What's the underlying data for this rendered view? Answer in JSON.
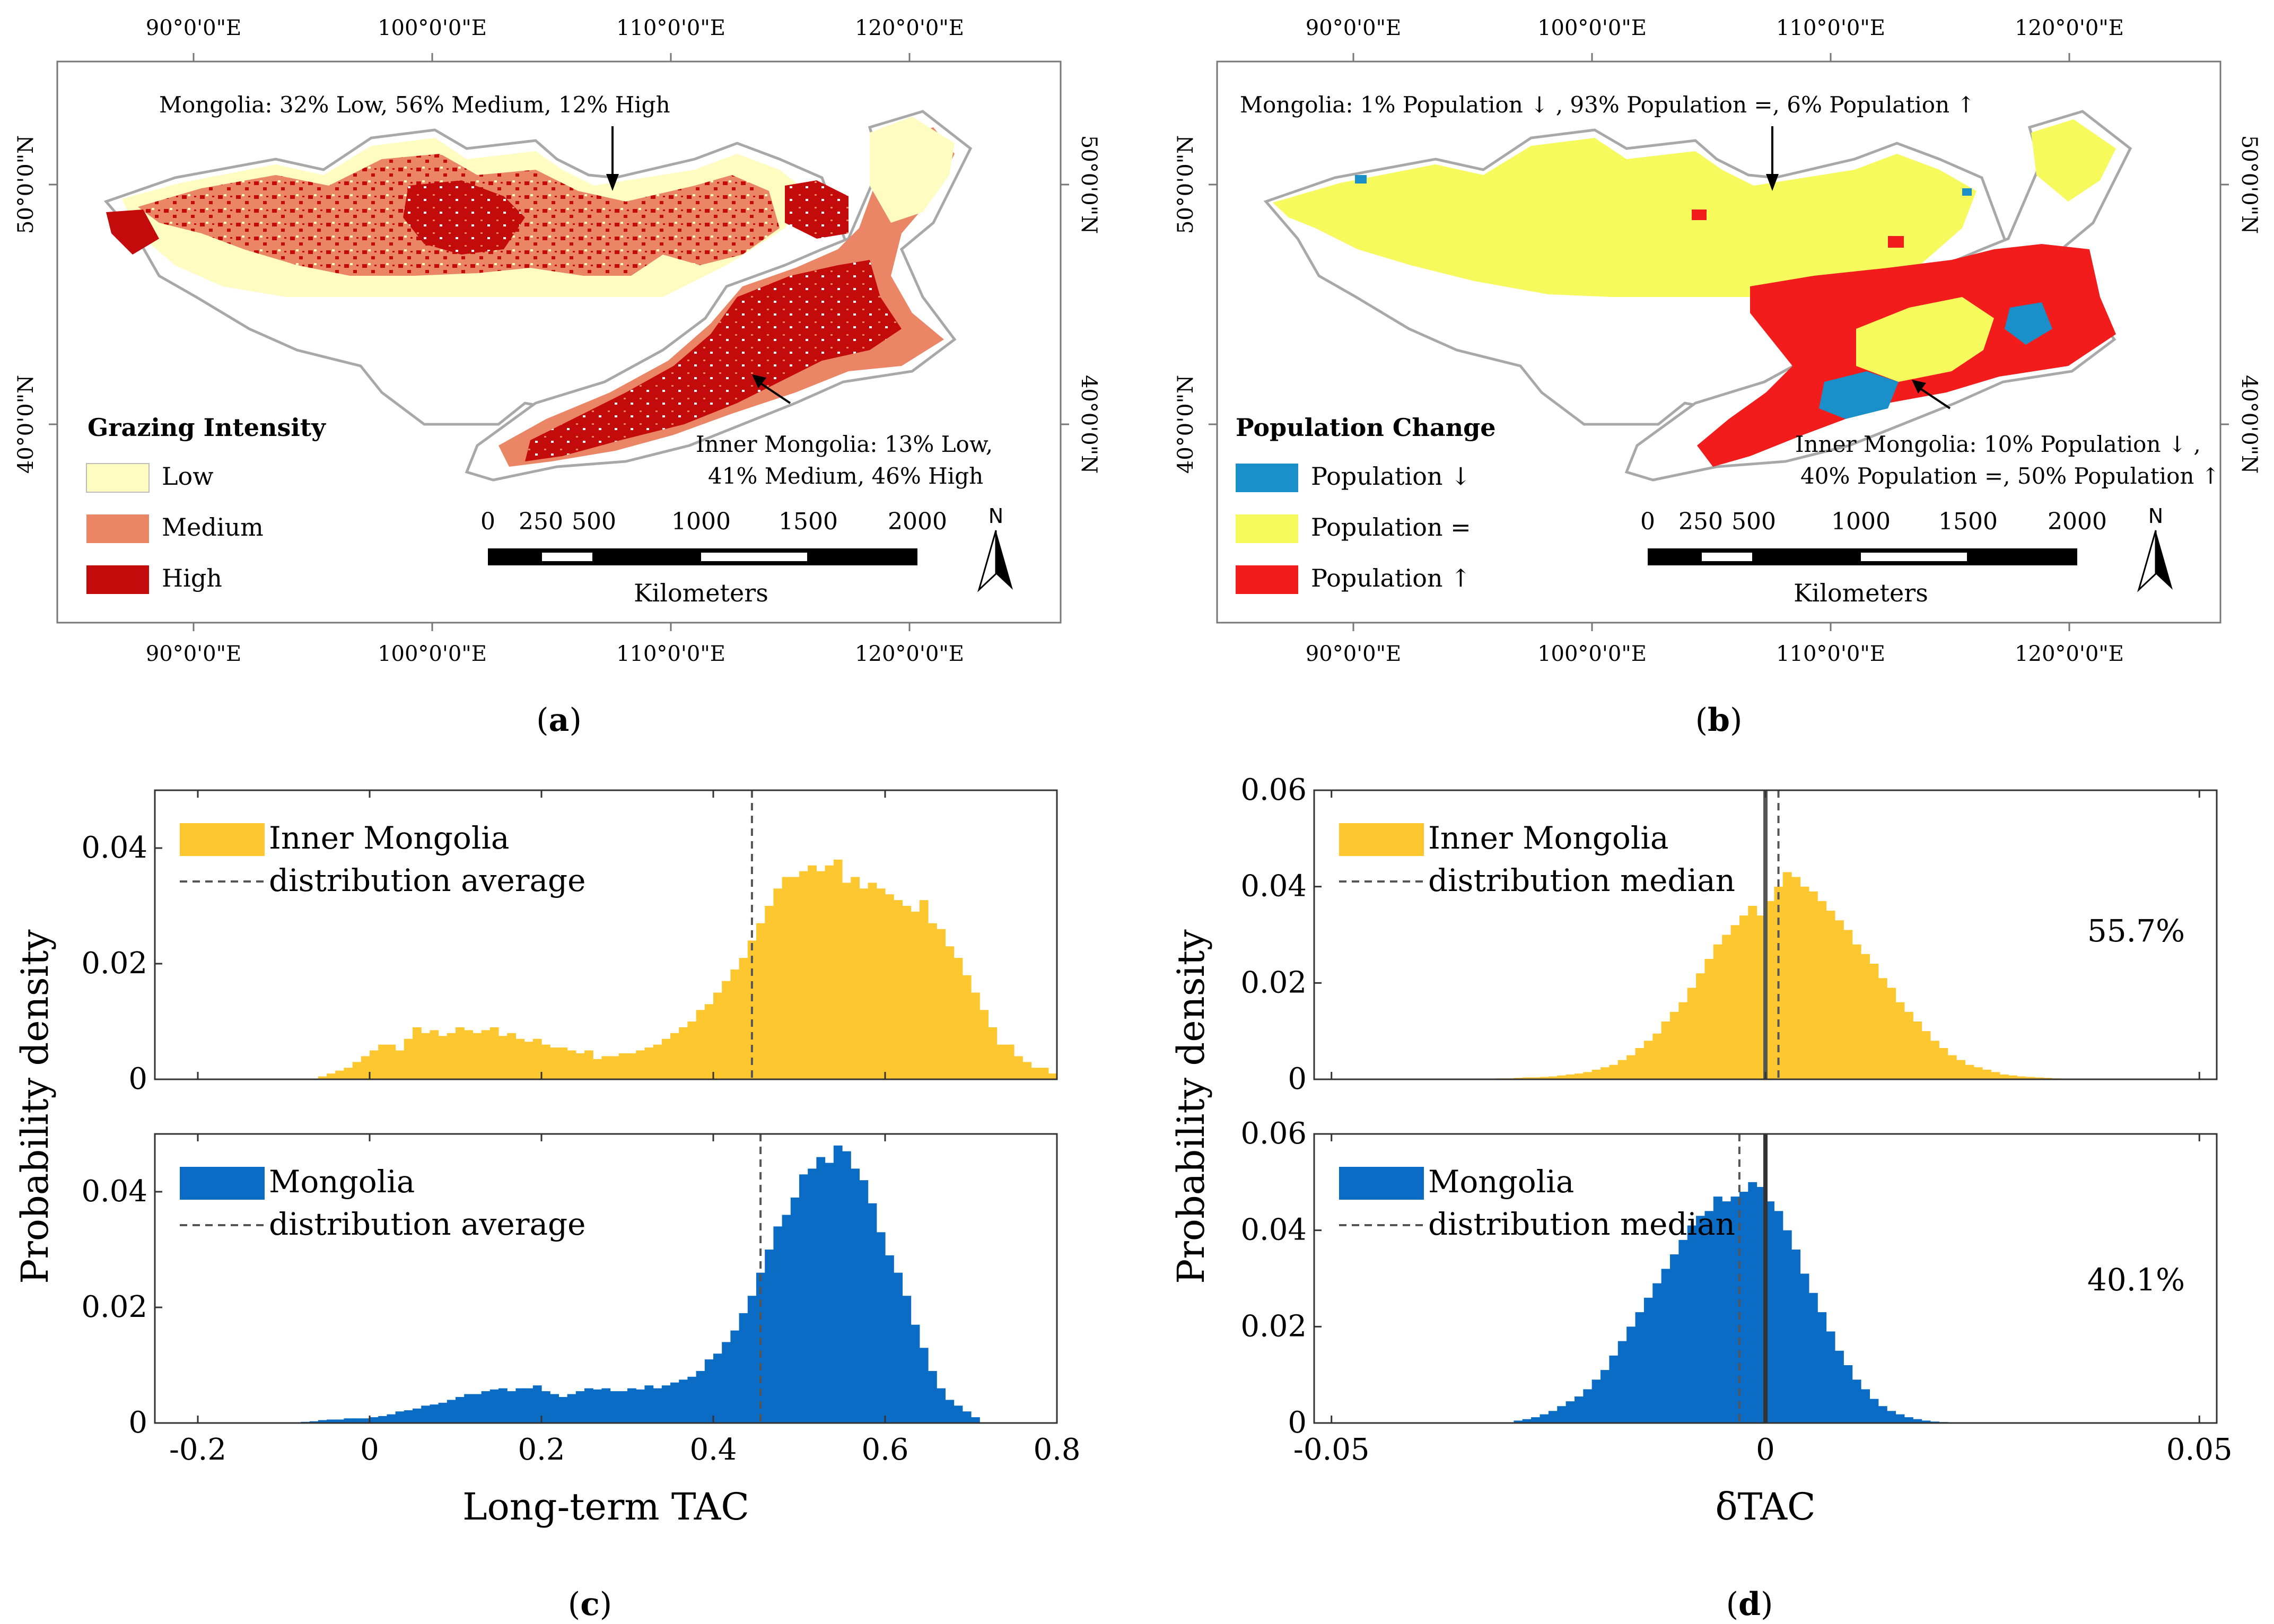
{
  "colors": {
    "low": "#fefcc0",
    "medium": "#ea8565",
    "high": "#c30b0b",
    "pop_down": "#1b8fc9",
    "pop_same": "#f7fa5c",
    "pop_up": "#f21c1c",
    "inner_mongolia": "#fdc72f",
    "mongolia": "#0a6cc4",
    "border": "#a8a8a8"
  },
  "map_a": {
    "panel_label": "(a)",
    "panel_letter": "a",
    "lon_ticks": [
      "90°0'0\"E",
      "100°0'0\"E",
      "110°0'0\"E",
      "120°0'0\"E"
    ],
    "lat_ticks": [
      "40°0'0\"N",
      "50°0'0\"N"
    ],
    "annotation_mongolia": "Mongolia: 32% Low, 56% Medium, 12% High",
    "annotation_inner_1": "Inner Mongolia: 13% Low,",
    "annotation_inner_2": "41% Medium, 46% High",
    "legend_title": "Grazing Intensity",
    "legend": [
      "Low",
      "Medium",
      "High"
    ],
    "scale_ticks": [
      "0",
      "250",
      "500",
      "1000",
      "1500",
      "2000"
    ],
    "scale_unit": "Kilometers",
    "north": "N"
  },
  "map_b": {
    "panel_label": "(b)",
    "panel_letter": "b",
    "lon_ticks": [
      "90°0'0\"E",
      "100°0'0\"E",
      "110°0'0\"E",
      "120°0'0\"E"
    ],
    "lat_ticks": [
      "40°0'0\"N",
      "50°0'0\"N"
    ],
    "annotation_mongolia": "Mongolia: 1% Population ↓   , 93% Population =, 6% Population ↑",
    "annotation_inner_1": "Inner Mongolia: 10% Population ↓   ,",
    "annotation_inner_2": "40% Population =, 50% Population ↑",
    "legend_title": "Population Change",
    "legend": [
      "Population ↓",
      "Population =",
      "Population ↑"
    ],
    "scale_ticks": [
      "0",
      "250",
      "500",
      "1000",
      "1500",
      "2000"
    ],
    "scale_unit": "Kilometers",
    "north": "N"
  },
  "chart_data": [
    {
      "id": "c",
      "type": "bar",
      "panel_label": "(c)",
      "panel_letter": "c",
      "xlabel": "Long-term TAC",
      "ylabel": "Probability density",
      "xlim": [
        -0.25,
        0.8
      ],
      "xticks": [
        "-0.2",
        "0",
        "0.2",
        "0.4",
        "0.6",
        "0.8"
      ],
      "xtick_values": [
        -0.2,
        0,
        0.2,
        0.4,
        0.6,
        0.8
      ],
      "subplots": [
        {
          "series": "Inner Mongolia",
          "reference_label": "distribution average",
          "reference_value": 0.445,
          "ylim": [
            0,
            0.05
          ],
          "yticks": [
            "0",
            "0.02",
            "0.04"
          ],
          "ytick_values": [
            0,
            0.02,
            0.04
          ],
          "bin_start": -0.06,
          "bin_width": 0.01,
          "values": [
            0.0005,
            0.001,
            0.0015,
            0.002,
            0.003,
            0.004,
            0.005,
            0.006,
            0.006,
            0.005,
            0.007,
            0.009,
            0.008,
            0.0085,
            0.0075,
            0.008,
            0.009,
            0.0085,
            0.008,
            0.0085,
            0.009,
            0.0075,
            0.008,
            0.007,
            0.0065,
            0.007,
            0.006,
            0.0055,
            0.0055,
            0.005,
            0.0045,
            0.005,
            0.0035,
            0.004,
            0.004,
            0.0045,
            0.0045,
            0.005,
            0.0055,
            0.006,
            0.007,
            0.008,
            0.009,
            0.01,
            0.012,
            0.013,
            0.015,
            0.017,
            0.019,
            0.021,
            0.024,
            0.027,
            0.03,
            0.033,
            0.035,
            0.035,
            0.036,
            0.037,
            0.036,
            0.037,
            0.038,
            0.034,
            0.035,
            0.033,
            0.034,
            0.033,
            0.032,
            0.031,
            0.03,
            0.029,
            0.031,
            0.027,
            0.026,
            0.023,
            0.021,
            0.018,
            0.015,
            0.012,
            0.009,
            0.006,
            0.006,
            0.004,
            0.003,
            0.002,
            0.002,
            0.001
          ]
        },
        {
          "series": "Mongolia",
          "reference_label": "distribution average",
          "reference_value": 0.455,
          "ylim": [
            0,
            0.05
          ],
          "yticks": [
            "0",
            "0.02",
            "0.04"
          ],
          "ytick_values": [
            0,
            0.02,
            0.04
          ],
          "bin_start": -0.08,
          "bin_width": 0.01,
          "values": [
            0.0002,
            0.0003,
            0.0005,
            0.0006,
            0.0006,
            0.0008,
            0.0008,
            0.0008,
            0.001,
            0.0012,
            0.0015,
            0.002,
            0.0022,
            0.0025,
            0.003,
            0.0032,
            0.0035,
            0.004,
            0.0045,
            0.005,
            0.005,
            0.0055,
            0.0058,
            0.006,
            0.0055,
            0.006,
            0.006,
            0.0065,
            0.0055,
            0.005,
            0.0045,
            0.005,
            0.0055,
            0.006,
            0.0058,
            0.006,
            0.0055,
            0.0055,
            0.006,
            0.0058,
            0.0065,
            0.006,
            0.0065,
            0.007,
            0.0075,
            0.008,
            0.009,
            0.011,
            0.012,
            0.014,
            0.016,
            0.019,
            0.022,
            0.026,
            0.03,
            0.034,
            0.036,
            0.039,
            0.043,
            0.044,
            0.046,
            0.045,
            0.048,
            0.047,
            0.044,
            0.042,
            0.038,
            0.033,
            0.029,
            0.026,
            0.022,
            0.017,
            0.013,
            0.009,
            0.006,
            0.004,
            0.003,
            0.002,
            0.001
          ]
        }
      ]
    },
    {
      "id": "d",
      "type": "bar",
      "panel_label": "(d)",
      "panel_letter": "d",
      "xlabel": "δTAC",
      "ylabel": "Probability density",
      "xlim": [
        -0.052,
        0.052
      ],
      "xticks": [
        "-0.05",
        "0",
        "0.05"
      ],
      "xtick_values": [
        -0.05,
        0,
        0.05
      ],
      "subplots": [
        {
          "series": "Inner Mongolia",
          "reference_label": "distribution median",
          "reference_value": 0.0015,
          "zero_line": 0,
          "percent": "55.7%",
          "ylim": [
            0,
            0.06
          ],
          "yticks": [
            "0",
            "0.02",
            "0.04",
            "0.06"
          ],
          "ytick_values": [
            0,
            0.02,
            0.04,
            0.06
          ],
          "bin_start": -0.031,
          "bin_width": 0.001,
          "values": [
            0.0002,
            0.0002,
            0.0003,
            0.0004,
            0.0004,
            0.0005,
            0.0006,
            0.0008,
            0.001,
            0.0012,
            0.0015,
            0.002,
            0.0025,
            0.003,
            0.004,
            0.005,
            0.0065,
            0.008,
            0.0095,
            0.012,
            0.014,
            0.016,
            0.019,
            0.022,
            0.025,
            0.028,
            0.03,
            0.032,
            0.034,
            0.036,
            0.034,
            0.037,
            0.04,
            0.043,
            0.042,
            0.04,
            0.039,
            0.037,
            0.035,
            0.033,
            0.031,
            0.028,
            0.026,
            0.024,
            0.021,
            0.019,
            0.016,
            0.014,
            0.012,
            0.01,
            0.008,
            0.0065,
            0.005,
            0.004,
            0.003,
            0.0025,
            0.002,
            0.0015,
            0.001,
            0.0008,
            0.0006,
            0.0005,
            0.0004,
            0.0003,
            0.0002
          ]
        },
        {
          "series": "Mongolia",
          "reference_label": "distribution median",
          "reference_value": -0.003,
          "zero_line": 0,
          "percent": "40.1%",
          "ylim": [
            0,
            0.06
          ],
          "yticks": [
            "0",
            "0.02",
            "0.04",
            "0.06"
          ],
          "ytick_values": [
            0,
            0.02,
            0.04,
            0.06
          ],
          "bin_start": -0.029,
          "bin_width": 0.001,
          "values": [
            0.0005,
            0.0008,
            0.0012,
            0.0018,
            0.0025,
            0.0035,
            0.0045,
            0.0055,
            0.007,
            0.009,
            0.011,
            0.014,
            0.017,
            0.02,
            0.023,
            0.026,
            0.029,
            0.032,
            0.035,
            0.038,
            0.041,
            0.043,
            0.044,
            0.047,
            0.046,
            0.047,
            0.048,
            0.05,
            0.049,
            0.046,
            0.044,
            0.04,
            0.036,
            0.031,
            0.027,
            0.023,
            0.019,
            0.015,
            0.012,
            0.009,
            0.007,
            0.005,
            0.0035,
            0.0025,
            0.0018,
            0.0012,
            0.0008,
            0.0005,
            0.0003,
            0.0002
          ]
        }
      ]
    }
  ]
}
